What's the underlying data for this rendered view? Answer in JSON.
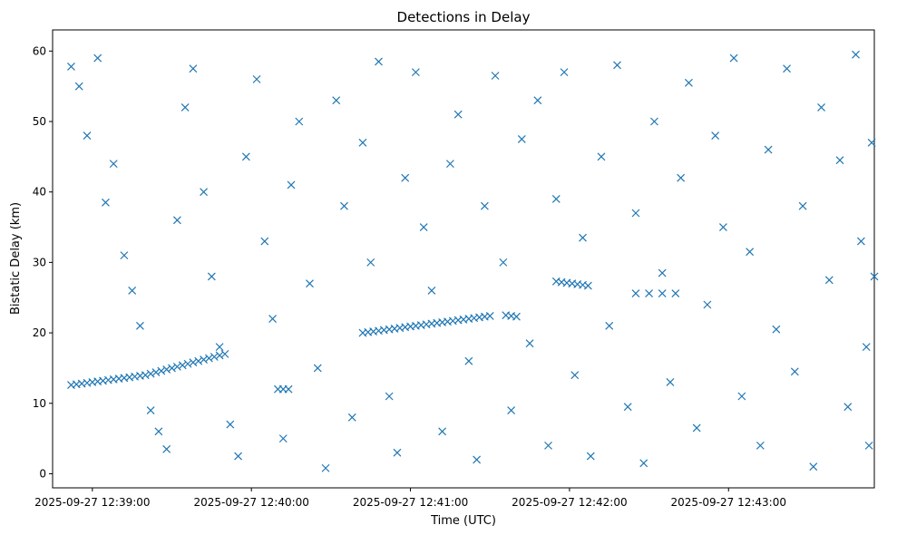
{
  "chart_data": {
    "type": "scatter",
    "title": "Detections in Delay",
    "xlabel": "Time (UTC)",
    "ylabel": "Bistatic Delay (km)",
    "x_unit": "time",
    "xlim": [
      "2025-09-27 12:38:45",
      "2025-09-27 12:43:55"
    ],
    "ylim": [
      -2,
      63
    ],
    "x_ticks": [
      "2025-09-27 12:39:00",
      "2025-09-27 12:40:00",
      "2025-09-27 12:41:00",
      "2025-09-27 12:42:00",
      "2025-09-27 12:43:00"
    ],
    "y_ticks": [
      0,
      10,
      20,
      30,
      40,
      50,
      60
    ],
    "grid": false,
    "marker": "x",
    "color": "#1f77b4",
    "series": [
      {
        "values": [
          [
            "12:38:52",
            12.6
          ],
          [
            "12:38:54",
            12.7
          ],
          [
            "12:38:56",
            12.8
          ],
          [
            "12:38:58",
            12.9
          ],
          [
            "12:39:00",
            13.0
          ],
          [
            "12:39:02",
            13.1
          ],
          [
            "12:39:04",
            13.2
          ],
          [
            "12:39:06",
            13.3
          ],
          [
            "12:39:08",
            13.4
          ],
          [
            "12:39:10",
            13.5
          ],
          [
            "12:39:12",
            13.6
          ],
          [
            "12:39:14",
            13.7
          ],
          [
            "12:39:16",
            13.8
          ],
          [
            "12:39:18",
            13.9
          ],
          [
            "12:39:20",
            14.0
          ],
          [
            "12:39:22",
            14.2
          ],
          [
            "12:39:24",
            14.4
          ],
          [
            "12:39:26",
            14.6
          ],
          [
            "12:39:28",
            14.8
          ],
          [
            "12:39:30",
            15.0
          ],
          [
            "12:39:32",
            15.2
          ],
          [
            "12:39:34",
            15.4
          ],
          [
            "12:39:36",
            15.6
          ],
          [
            "12:39:38",
            15.8
          ],
          [
            "12:39:40",
            16.0
          ],
          [
            "12:39:42",
            16.2
          ],
          [
            "12:39:44",
            16.4
          ],
          [
            "12:39:46",
            16.6
          ],
          [
            "12:39:48",
            16.8
          ],
          [
            "12:39:50",
            17.0
          ],
          [
            "12:40:42",
            20.0
          ],
          [
            "12:40:44",
            20.1
          ],
          [
            "12:40:46",
            20.2
          ],
          [
            "12:40:48",
            20.3
          ],
          [
            "12:40:50",
            20.4
          ],
          [
            "12:40:52",
            20.5
          ],
          [
            "12:40:54",
            20.6
          ],
          [
            "12:40:56",
            20.7
          ],
          [
            "12:40:58",
            20.8
          ],
          [
            "12:41:00",
            20.9
          ],
          [
            "12:41:02",
            21.0
          ],
          [
            "12:41:04",
            21.1
          ],
          [
            "12:41:06",
            21.2
          ],
          [
            "12:41:08",
            21.3
          ],
          [
            "12:41:10",
            21.4
          ],
          [
            "12:41:12",
            21.5
          ],
          [
            "12:41:14",
            21.6
          ],
          [
            "12:41:16",
            21.7
          ],
          [
            "12:41:18",
            21.8
          ],
          [
            "12:41:20",
            21.9
          ],
          [
            "12:41:22",
            22.0
          ],
          [
            "12:41:24",
            22.1
          ],
          [
            "12:41:26",
            22.2
          ],
          [
            "12:41:28",
            22.3
          ],
          [
            "12:41:30",
            22.4
          ],
          [
            "12:41:36",
            22.5
          ],
          [
            "12:41:38",
            22.4
          ],
          [
            "12:41:40",
            22.3
          ],
          [
            "12:41:55",
            27.3
          ],
          [
            "12:41:57",
            27.2
          ],
          [
            "12:41:59",
            27.1
          ],
          [
            "12:42:01",
            27.0
          ],
          [
            "12:42:03",
            26.9
          ],
          [
            "12:42:05",
            26.8
          ],
          [
            "12:42:07",
            26.7
          ],
          [
            "12:42:25",
            25.6
          ],
          [
            "12:42:30",
            25.6
          ],
          [
            "12:42:35",
            25.6
          ],
          [
            "12:42:40",
            25.6
          ],
          [
            "12:40:10",
            12.0
          ],
          [
            "12:40:12",
            12.0
          ],
          [
            "12:40:14",
            12.0
          ],
          [
            "12:38:52",
            57.8
          ],
          [
            "12:38:55",
            55.0
          ],
          [
            "12:38:58",
            48.0
          ],
          [
            "12:39:02",
            59.0
          ],
          [
            "12:39:05",
            38.5
          ],
          [
            "12:39:08",
            44.0
          ],
          [
            "12:39:12",
            31.0
          ],
          [
            "12:39:15",
            26.0
          ],
          [
            "12:39:18",
            21.0
          ],
          [
            "12:39:22",
            9.0
          ],
          [
            "12:39:25",
            6.0
          ],
          [
            "12:39:28",
            3.5
          ],
          [
            "12:39:32",
            36.0
          ],
          [
            "12:39:35",
            52.0
          ],
          [
            "12:39:38",
            57.5
          ],
          [
            "12:39:42",
            40.0
          ],
          [
            "12:39:45",
            28.0
          ],
          [
            "12:39:48",
            18.0
          ],
          [
            "12:39:52",
            7.0
          ],
          [
            "12:39:55",
            2.5
          ],
          [
            "12:39:58",
            45.0
          ],
          [
            "12:40:02",
            56.0
          ],
          [
            "12:40:05",
            33.0
          ],
          [
            "12:40:08",
            22.0
          ],
          [
            "12:40:12",
            5.0
          ],
          [
            "12:40:15",
            41.0
          ],
          [
            "12:40:18",
            50.0
          ],
          [
            "12:40:22",
            27.0
          ],
          [
            "12:40:25",
            15.0
          ],
          [
            "12:40:28",
            0.8
          ],
          [
            "12:40:32",
            53.0
          ],
          [
            "12:40:35",
            38.0
          ],
          [
            "12:40:38",
            8.0
          ],
          [
            "12:40:42",
            47.0
          ],
          [
            "12:40:45",
            30.0
          ],
          [
            "12:40:48",
            58.5
          ],
          [
            "12:40:52",
            11.0
          ],
          [
            "12:40:55",
            3.0
          ],
          [
            "12:40:58",
            42.0
          ],
          [
            "12:41:02",
            57.0
          ],
          [
            "12:41:05",
            35.0
          ],
          [
            "12:41:08",
            26.0
          ],
          [
            "12:41:12",
            6.0
          ],
          [
            "12:41:15",
            44.0
          ],
          [
            "12:41:18",
            51.0
          ],
          [
            "12:41:22",
            16.0
          ],
          [
            "12:41:25",
            2.0
          ],
          [
            "12:41:28",
            38.0
          ],
          [
            "12:41:32",
            56.5
          ],
          [
            "12:41:35",
            30.0
          ],
          [
            "12:41:38",
            9.0
          ],
          [
            "12:41:42",
            47.5
          ],
          [
            "12:41:45",
            18.5
          ],
          [
            "12:41:48",
            53.0
          ],
          [
            "12:41:52",
            4.0
          ],
          [
            "12:41:55",
            39.0
          ],
          [
            "12:41:58",
            57.0
          ],
          [
            "12:42:02",
            14.0
          ],
          [
            "12:42:05",
            33.5
          ],
          [
            "12:42:08",
            2.5
          ],
          [
            "12:42:12",
            45.0
          ],
          [
            "12:42:15",
            21.0
          ],
          [
            "12:42:18",
            58.0
          ],
          [
            "12:42:22",
            9.5
          ],
          [
            "12:42:25",
            37.0
          ],
          [
            "12:42:28",
            1.5
          ],
          [
            "12:42:32",
            50.0
          ],
          [
            "12:42:35",
            28.5
          ],
          [
            "12:42:38",
            13.0
          ],
          [
            "12:42:42",
            42.0
          ],
          [
            "12:42:45",
            55.5
          ],
          [
            "12:42:48",
            6.5
          ],
          [
            "12:42:52",
            24.0
          ],
          [
            "12:42:55",
            48.0
          ],
          [
            "12:42:58",
            35.0
          ],
          [
            "12:43:02",
            59.0
          ],
          [
            "12:43:05",
            11.0
          ],
          [
            "12:43:08",
            31.5
          ],
          [
            "12:43:12",
            4.0
          ],
          [
            "12:43:15",
            46.0
          ],
          [
            "12:43:18",
            20.5
          ],
          [
            "12:43:22",
            57.5
          ],
          [
            "12:43:25",
            14.5
          ],
          [
            "12:43:28",
            38.0
          ],
          [
            "12:43:32",
            1.0
          ],
          [
            "12:43:35",
            52.0
          ],
          [
            "12:43:38",
            27.5
          ],
          [
            "12:43:42",
            44.5
          ],
          [
            "12:43:45",
            9.5
          ],
          [
            "12:43:48",
            59.5
          ],
          [
            "12:43:50",
            33.0
          ],
          [
            "12:43:52",
            18.0
          ],
          [
            "12:43:53",
            4.0
          ],
          [
            "12:43:54",
            47.0
          ],
          [
            "12:43:55",
            28.0
          ]
        ]
      }
    ]
  }
}
